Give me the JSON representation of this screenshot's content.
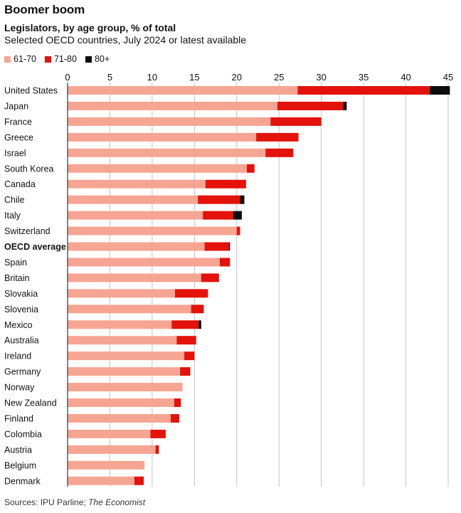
{
  "title": "Boomer boom",
  "subtitle": "Legislators, by age group, % of total",
  "subsubtitle": "Selected OECD countries, July 2024 or latest available",
  "source_prefix": "Sources: IPU Parline; ",
  "source_italic": "The Economist",
  "colors": {
    "c61_70": "#f7a593",
    "c71_80": "#e3120b",
    "c80plus": "#0c0c0c",
    "grid": "#b5b5b5"
  },
  "chart_data": {
    "type": "bar",
    "orientation": "horizontal",
    "stacked": true,
    "xlim": [
      0,
      45
    ],
    "xticks": [
      0,
      5,
      10,
      15,
      20,
      25,
      30,
      35,
      40,
      45
    ],
    "categories": [
      "United States",
      "Japan",
      "France",
      "Greece",
      "Israel",
      "South Korea",
      "Canada",
      "Chile",
      "Italy",
      "Switzerland",
      "OECD average",
      "Spain",
      "Britain",
      "Slovakia",
      "Slovenia",
      "Mexico",
      "Australia",
      "Ireland",
      "Germany",
      "Norway",
      "New Zealand",
      "Finland",
      "Colombia",
      "Austria",
      "Belgium",
      "Denmark"
    ],
    "highlight": "OECD average",
    "series": [
      {
        "name": "61-70",
        "values": [
          27.2,
          24.8,
          24.0,
          22.3,
          23.4,
          21.2,
          16.3,
          15.4,
          16.0,
          20.0,
          16.2,
          18.0,
          15.8,
          12.7,
          14.6,
          12.3,
          12.9,
          13.8,
          13.3,
          13.6,
          12.6,
          12.2,
          9.8,
          10.4,
          9.1,
          7.9
        ]
      },
      {
        "name": "71-80",
        "values": [
          15.6,
          7.8,
          6.0,
          5.0,
          3.3,
          0.9,
          4.8,
          5.0,
          3.6,
          0.4,
          2.9,
          1.2,
          2.1,
          3.9,
          1.5,
          3.2,
          2.3,
          1.2,
          1.2,
          0.0,
          0.8,
          1.0,
          1.8,
          0.4,
          0.0,
          1.1
        ]
      },
      {
        "name": "80+",
        "values": [
          2.4,
          0.4,
          0.0,
          0.0,
          0.0,
          0.0,
          0.0,
          0.5,
          1.0,
          0.0,
          0.1,
          0.0,
          0.0,
          0.0,
          0.0,
          0.3,
          0.0,
          0.0,
          0.0,
          0.0,
          0.0,
          0.0,
          0.0,
          0.0,
          0.0,
          0.0
        ]
      }
    ]
  }
}
